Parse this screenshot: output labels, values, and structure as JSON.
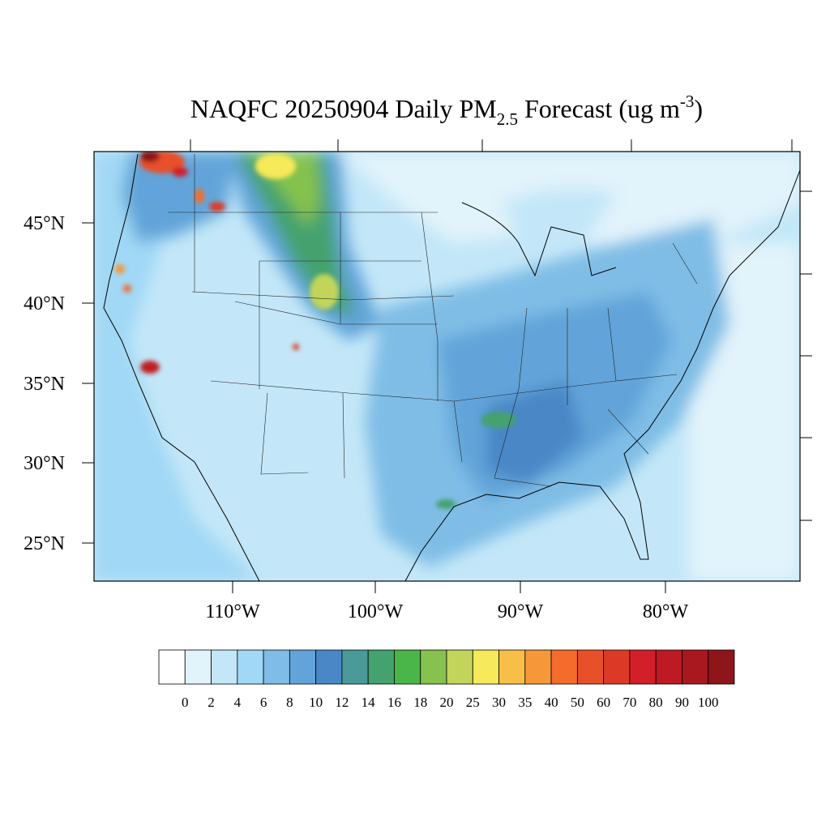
{
  "title": {
    "main": "NAQFC 20250904 Daily PM",
    "sub": "2.5",
    "mid": " Forecast (ug m",
    "sup": "-3",
    "end": ")"
  },
  "map": {
    "lat_labels": [
      "45°N",
      "40°N",
      "35°N",
      "30°N",
      "25°N"
    ],
    "lon_labels": [
      "110°W",
      "100°W",
      "90°W",
      "80°W"
    ]
  },
  "colorbar": {
    "colors": [
      "#ffffff",
      "#e1f3fb",
      "#c3e7f8",
      "#a0d8f5",
      "#7fbde6",
      "#62a4d9",
      "#4a87c6",
      "#4a9a9a",
      "#44a26e",
      "#4ab548",
      "#85c24e",
      "#c2d55a",
      "#f6e95a",
      "#f8bf48",
      "#f6973a",
      "#f36c2b",
      "#e8502a",
      "#dc3a26",
      "#d21f2a",
      "#bd1a24",
      "#a9181f",
      "#8e1519"
    ],
    "labels": [
      0,
      2,
      4,
      6,
      8,
      10,
      12,
      14,
      16,
      18,
      20,
      25,
      30,
      35,
      40,
      50,
      60,
      70,
      80,
      90,
      100
    ]
  }
}
